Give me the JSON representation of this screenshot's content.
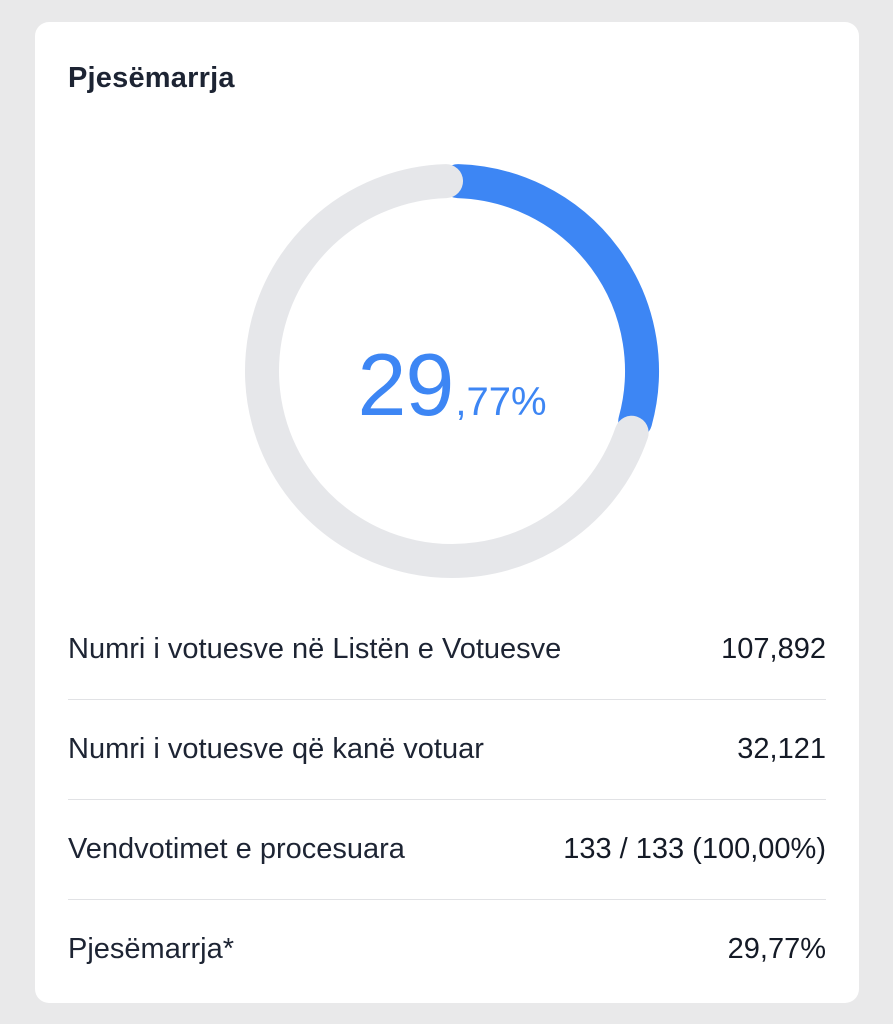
{
  "card": {
    "title": "Pjesëmarrja"
  },
  "chart_data": {
    "type": "pie",
    "variant": "donut",
    "values": [
      29.77,
      70.23
    ],
    "colors": [
      "#3d86f4",
      "#e6e7ea"
    ],
    "center_label_int": "29",
    "center_label_frac": ",77%"
  },
  "stats": [
    {
      "label": "Numri i votuesve në Listën e Votuesve",
      "value": "107,892"
    },
    {
      "label": "Numri i votuesve që kanë votuar",
      "value": "32,121"
    },
    {
      "label": "Vendvotimet e procesuara",
      "value": "133 / 133 (100,00%)"
    },
    {
      "label": "Pjesëmarrja*",
      "value": "29,77%"
    }
  ]
}
